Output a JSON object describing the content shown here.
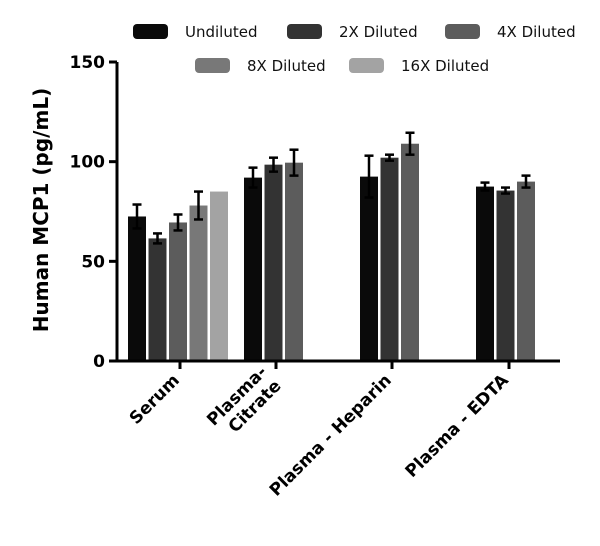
{
  "chart_data": {
    "type": "bar",
    "title": "",
    "xlabel": "",
    "ylabel": "Human  MCP1 (pg/mL)",
    "ylim": [
      0,
      150
    ],
    "yticks": [
      "0",
      "50",
      "100",
      "150"
    ],
    "categories": [
      [
        "Serum"
      ],
      [
        "Plasma-",
        "Citrate"
      ],
      [
        "Plasma - Heparin"
      ],
      [
        "Plasma - EDTA"
      ]
    ],
    "legend_position": "top",
    "series": [
      {
        "name": "Undiluted",
        "color": "#0a0a0a",
        "values": [
          72.5,
          92.0,
          92.5,
          87.5
        ],
        "errors": [
          6.0,
          5.0,
          10.5,
          2.0
        ]
      },
      {
        "name": "2X Diluted",
        "color": "#333333",
        "values": [
          61.5,
          98.5,
          102.0,
          85.5
        ],
        "errors": [
          2.5,
          3.5,
          1.5,
          1.5
        ]
      },
      {
        "name": "4X Diluted",
        "color": "#5c5c5c",
        "values": [
          69.5,
          99.5,
          109.0,
          90.0
        ],
        "errors": [
          4.0,
          6.5,
          5.5,
          3.0
        ]
      },
      {
        "name": "8X Diluted",
        "color": "#787878",
        "values": [
          78.0,
          null,
          null,
          null
        ],
        "errors": [
          7.0,
          null,
          null,
          null
        ]
      },
      {
        "name": "16X Diluted",
        "color": "#a3a3a3",
        "values": [
          85.0,
          null,
          null,
          null
        ],
        "errors": [
          0,
          null,
          null,
          null
        ]
      }
    ]
  }
}
